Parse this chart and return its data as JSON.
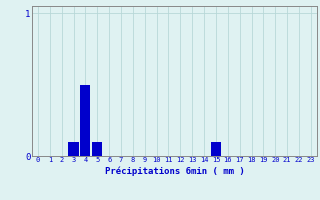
{
  "xlabel": "Précipitations 6min ( mm )",
  "hours": [
    0,
    1,
    2,
    3,
    4,
    5,
    6,
    7,
    8,
    9,
    10,
    11,
    12,
    13,
    14,
    15,
    16,
    17,
    18,
    19,
    20,
    21,
    22,
    23
  ],
  "values": [
    0,
    0,
    0,
    0.1,
    0.5,
    0.1,
    0,
    0,
    0,
    0,
    0,
    0,
    0,
    0,
    0,
    0.1,
    0,
    0,
    0,
    0,
    0,
    0,
    0,
    0
  ],
  "bar_color": "#0000cc",
  "background_color": "#dff2f2",
  "grid_color": "#b8d8d8",
  "axis_color": "#888888",
  "text_color": "#0000cc",
  "ylim": [
    0,
    1.05
  ],
  "yticks": [
    0,
    1
  ],
  "bar_width": 0.85
}
